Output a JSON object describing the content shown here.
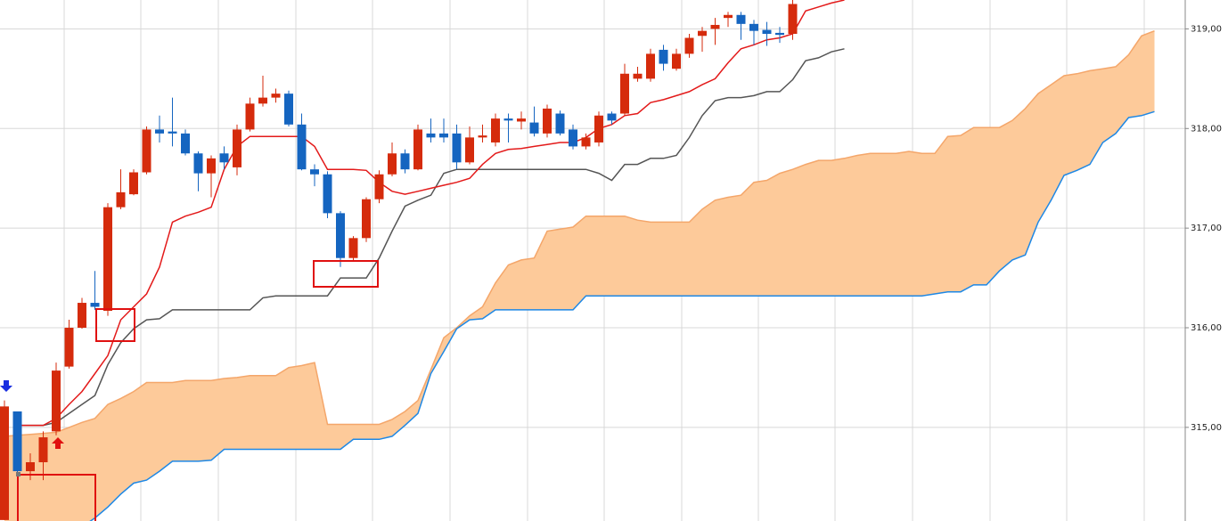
{
  "chart_data": {
    "type": "candlestick",
    "ylim": [
      314.06,
      319.29
    ],
    "yticks": [
      {
        "value": 315,
        "label": "315,00"
      },
      {
        "value": 316,
        "label": "316,00"
      },
      {
        "value": 317,
        "label": "317,00"
      },
      {
        "value": 318,
        "label": "318,00"
      },
      {
        "value": 319,
        "label": "319,00"
      }
    ],
    "grid": true,
    "up_color": "#d52b0c",
    "down_color": "#1565c0",
    "open": [
      314.07,
      315.16,
      314.56,
      314.65,
      314.96,
      315.61,
      316.0,
      316.25,
      316.17,
      317.21,
      317.34,
      317.56,
      317.99,
      317.97,
      317.95,
      317.75,
      317.55,
      317.75,
      317.61,
      317.99,
      318.25,
      318.31,
      318.35,
      318.04,
      317.59,
      317.54,
      317.15,
      316.7,
      316.9,
      317.29,
      317.54,
      317.75,
      317.59,
      317.95,
      317.95,
      317.95,
      317.66,
      317.91,
      317.86,
      318.1,
      318.07,
      318.06,
      317.95,
      318.15,
      317.99,
      317.82,
      317.86,
      318.15,
      318.15,
      318.5,
      318.5,
      318.79,
      318.6,
      318.75,
      318.93,
      319.0,
      319.11,
      319.14,
      319.05,
      318.99,
      318.96,
      318.95
    ],
    "high": [
      315.27,
      315.16,
      314.74,
      314.96,
      315.65,
      316.08,
      316.3,
      316.57,
      317.25,
      317.59,
      317.59,
      318.02,
      318.13,
      318.31,
      317.99,
      317.77,
      317.73,
      317.82,
      318.04,
      318.31,
      318.53,
      318.4,
      318.38,
      318.15,
      317.64,
      317.57,
      317.17,
      316.92,
      317.31,
      317.58,
      317.86,
      317.79,
      318.04,
      318.1,
      318.1,
      318.04,
      318.02,
      318.04,
      318.15,
      318.15,
      318.17,
      318.22,
      318.24,
      318.18,
      318.04,
      317.95,
      318.17,
      318.17,
      318.65,
      318.62,
      318.8,
      318.84,
      318.8,
      318.95,
      319.02,
      319.11,
      319.17,
      319.17,
      319.09,
      319.07,
      319.02,
      319.29
    ],
    "low": [
      314.07,
      314.52,
      314.47,
      314.47,
      314.92,
      315.59,
      315.99,
      316.18,
      316.12,
      317.19,
      317.33,
      317.54,
      317.86,
      317.82,
      317.73,
      317.37,
      317.31,
      317.59,
      317.53,
      317.97,
      318.22,
      318.26,
      318.02,
      317.58,
      317.42,
      317.1,
      316.61,
      316.68,
      316.86,
      317.25,
      317.52,
      317.55,
      317.58,
      317.86,
      317.86,
      317.59,
      317.64,
      317.86,
      317.82,
      317.86,
      317.99,
      317.92,
      317.91,
      317.93,
      317.79,
      317.79,
      317.82,
      318.04,
      318.13,
      318.47,
      318.47,
      318.58,
      318.58,
      318.71,
      318.77,
      318.84,
      319.02,
      318.89,
      318.84,
      318.83,
      318.86,
      318.89
    ],
    "close": [
      315.21,
      314.56,
      314.65,
      314.9,
      315.57,
      316.0,
      316.25,
      316.21,
      317.21,
      317.36,
      317.56,
      317.99,
      317.95,
      317.95,
      317.75,
      317.55,
      317.7,
      317.66,
      317.99,
      318.25,
      318.31,
      318.35,
      318.04,
      317.59,
      317.54,
      317.15,
      316.7,
      316.9,
      317.29,
      317.54,
      317.75,
      317.59,
      317.99,
      317.91,
      317.91,
      317.66,
      317.91,
      317.93,
      318.1,
      318.08,
      318.1,
      317.95,
      318.2,
      317.95,
      317.82,
      317.91,
      318.13,
      318.08,
      318.55,
      318.55,
      318.75,
      318.65,
      318.75,
      318.91,
      318.98,
      319.04,
      319.14,
      319.05,
      318.98,
      318.95,
      318.94,
      319.25
    ],
    "lines": [
      {
        "color": "#555555",
        "values": [
          null,
          315.02,
          315.02,
          315.02,
          315.05,
          315.14,
          315.23,
          315.32,
          315.63,
          315.85,
          315.99,
          316.08,
          316.09,
          316.18,
          316.18,
          316.18,
          316.18,
          316.18,
          316.18,
          316.18,
          316.3,
          316.32,
          316.32,
          316.32,
          316.32,
          316.32,
          316.5,
          316.5,
          316.5,
          316.7,
          316.97,
          317.22,
          317.28,
          317.33,
          317.55,
          317.59,
          317.59,
          317.59,
          317.59,
          317.59,
          317.59,
          317.59,
          317.59,
          317.59,
          317.59,
          317.59,
          317.55,
          317.48,
          317.64,
          317.64,
          317.7,
          317.7,
          317.73,
          317.91,
          318.13,
          318.28,
          318.31,
          318.31,
          318.33,
          318.37,
          318.37,
          318.49,
          318.68,
          318.71,
          318.77,
          318.8
        ]
      },
      {
        "color": "#e31a1a",
        "values": [
          null,
          315.02,
          315.02,
          315.02,
          315.09,
          315.23,
          315.36,
          315.54,
          315.72,
          316.08,
          316.21,
          316.34,
          316.61,
          317.06,
          317.12,
          317.16,
          317.21,
          317.59,
          317.82,
          317.92,
          317.92,
          317.92,
          317.92,
          317.92,
          317.82,
          317.59,
          317.59,
          317.59,
          317.58,
          317.46,
          317.37,
          317.34,
          317.37,
          317.4,
          317.43,
          317.46,
          317.5,
          317.64,
          317.75,
          317.79,
          317.8,
          317.82,
          317.84,
          317.86,
          317.86,
          317.91,
          318.0,
          318.04,
          318.13,
          318.15,
          318.26,
          318.29,
          318.33,
          318.37,
          318.44,
          318.5,
          318.66,
          318.8,
          318.84,
          318.89,
          318.91,
          318.95,
          319.18,
          319.22,
          319.26,
          319.29
        ]
      }
    ],
    "cloud": {
      "fill": "#fdca9a",
      "upper": {
        "color": "#f4a66a",
        "values": [
          314.91,
          314.92,
          314.93,
          314.94,
          314.95,
          315.0,
          315.05,
          315.09,
          315.23,
          315.29,
          315.36,
          315.45,
          315.45,
          315.45,
          315.47,
          315.47,
          315.47,
          315.49,
          315.5,
          315.52,
          315.52,
          315.52,
          315.6,
          315.62,
          315.65,
          315.03,
          315.03,
          315.03,
          315.03,
          315.03,
          315.08,
          315.16,
          315.27,
          315.58,
          315.9,
          316.0,
          316.12,
          316.21,
          316.45,
          316.63,
          316.68,
          316.7,
          316.97,
          316.99,
          317.01,
          317.12,
          317.12,
          317.12,
          317.12,
          317.08,
          317.06,
          317.06,
          317.06,
          317.06,
          317.19,
          317.28,
          317.31,
          317.33,
          317.46,
          317.48,
          317.55,
          317.59,
          317.64,
          317.68,
          317.68,
          317.7,
          317.73,
          317.75,
          317.75,
          317.75,
          317.77,
          317.75,
          317.75,
          317.92,
          317.93,
          318.01,
          318.01,
          318.01,
          318.08,
          318.2,
          318.35,
          318.44,
          318.53,
          318.55,
          318.58,
          318.6,
          318.62,
          318.74,
          318.93,
          318.98
        ]
      },
      "lower": {
        "color": "#1e88e5",
        "values": [
          null,
          null,
          null,
          null,
          null,
          null,
          314.0,
          314.09,
          314.2,
          314.33,
          314.44,
          314.47,
          314.56,
          314.66,
          314.66,
          314.66,
          314.67,
          314.78,
          314.78,
          314.78,
          314.78,
          314.78,
          314.78,
          314.78,
          314.78,
          314.78,
          314.78,
          314.88,
          314.88,
          314.88,
          314.91,
          315.02,
          315.14,
          315.54,
          315.76,
          315.99,
          316.08,
          316.09,
          316.18,
          316.18,
          316.18,
          316.18,
          316.18,
          316.18,
          316.18,
          316.32,
          316.32,
          316.32,
          316.32,
          316.32,
          316.32,
          316.32,
          316.32,
          316.32,
          316.32,
          316.32,
          316.32,
          316.32,
          316.32,
          316.32,
          316.32,
          316.32,
          316.32,
          316.32,
          316.32,
          316.32,
          316.32,
          316.32,
          316.32,
          316.32,
          316.32,
          316.32,
          316.34,
          316.36,
          316.36,
          316.43,
          316.43,
          316.57,
          316.68,
          316.73,
          317.06,
          317.28,
          317.53,
          317.58,
          317.64,
          317.86,
          317.95,
          318.11,
          318.13,
          318.17
        ]
      }
    }
  }
}
